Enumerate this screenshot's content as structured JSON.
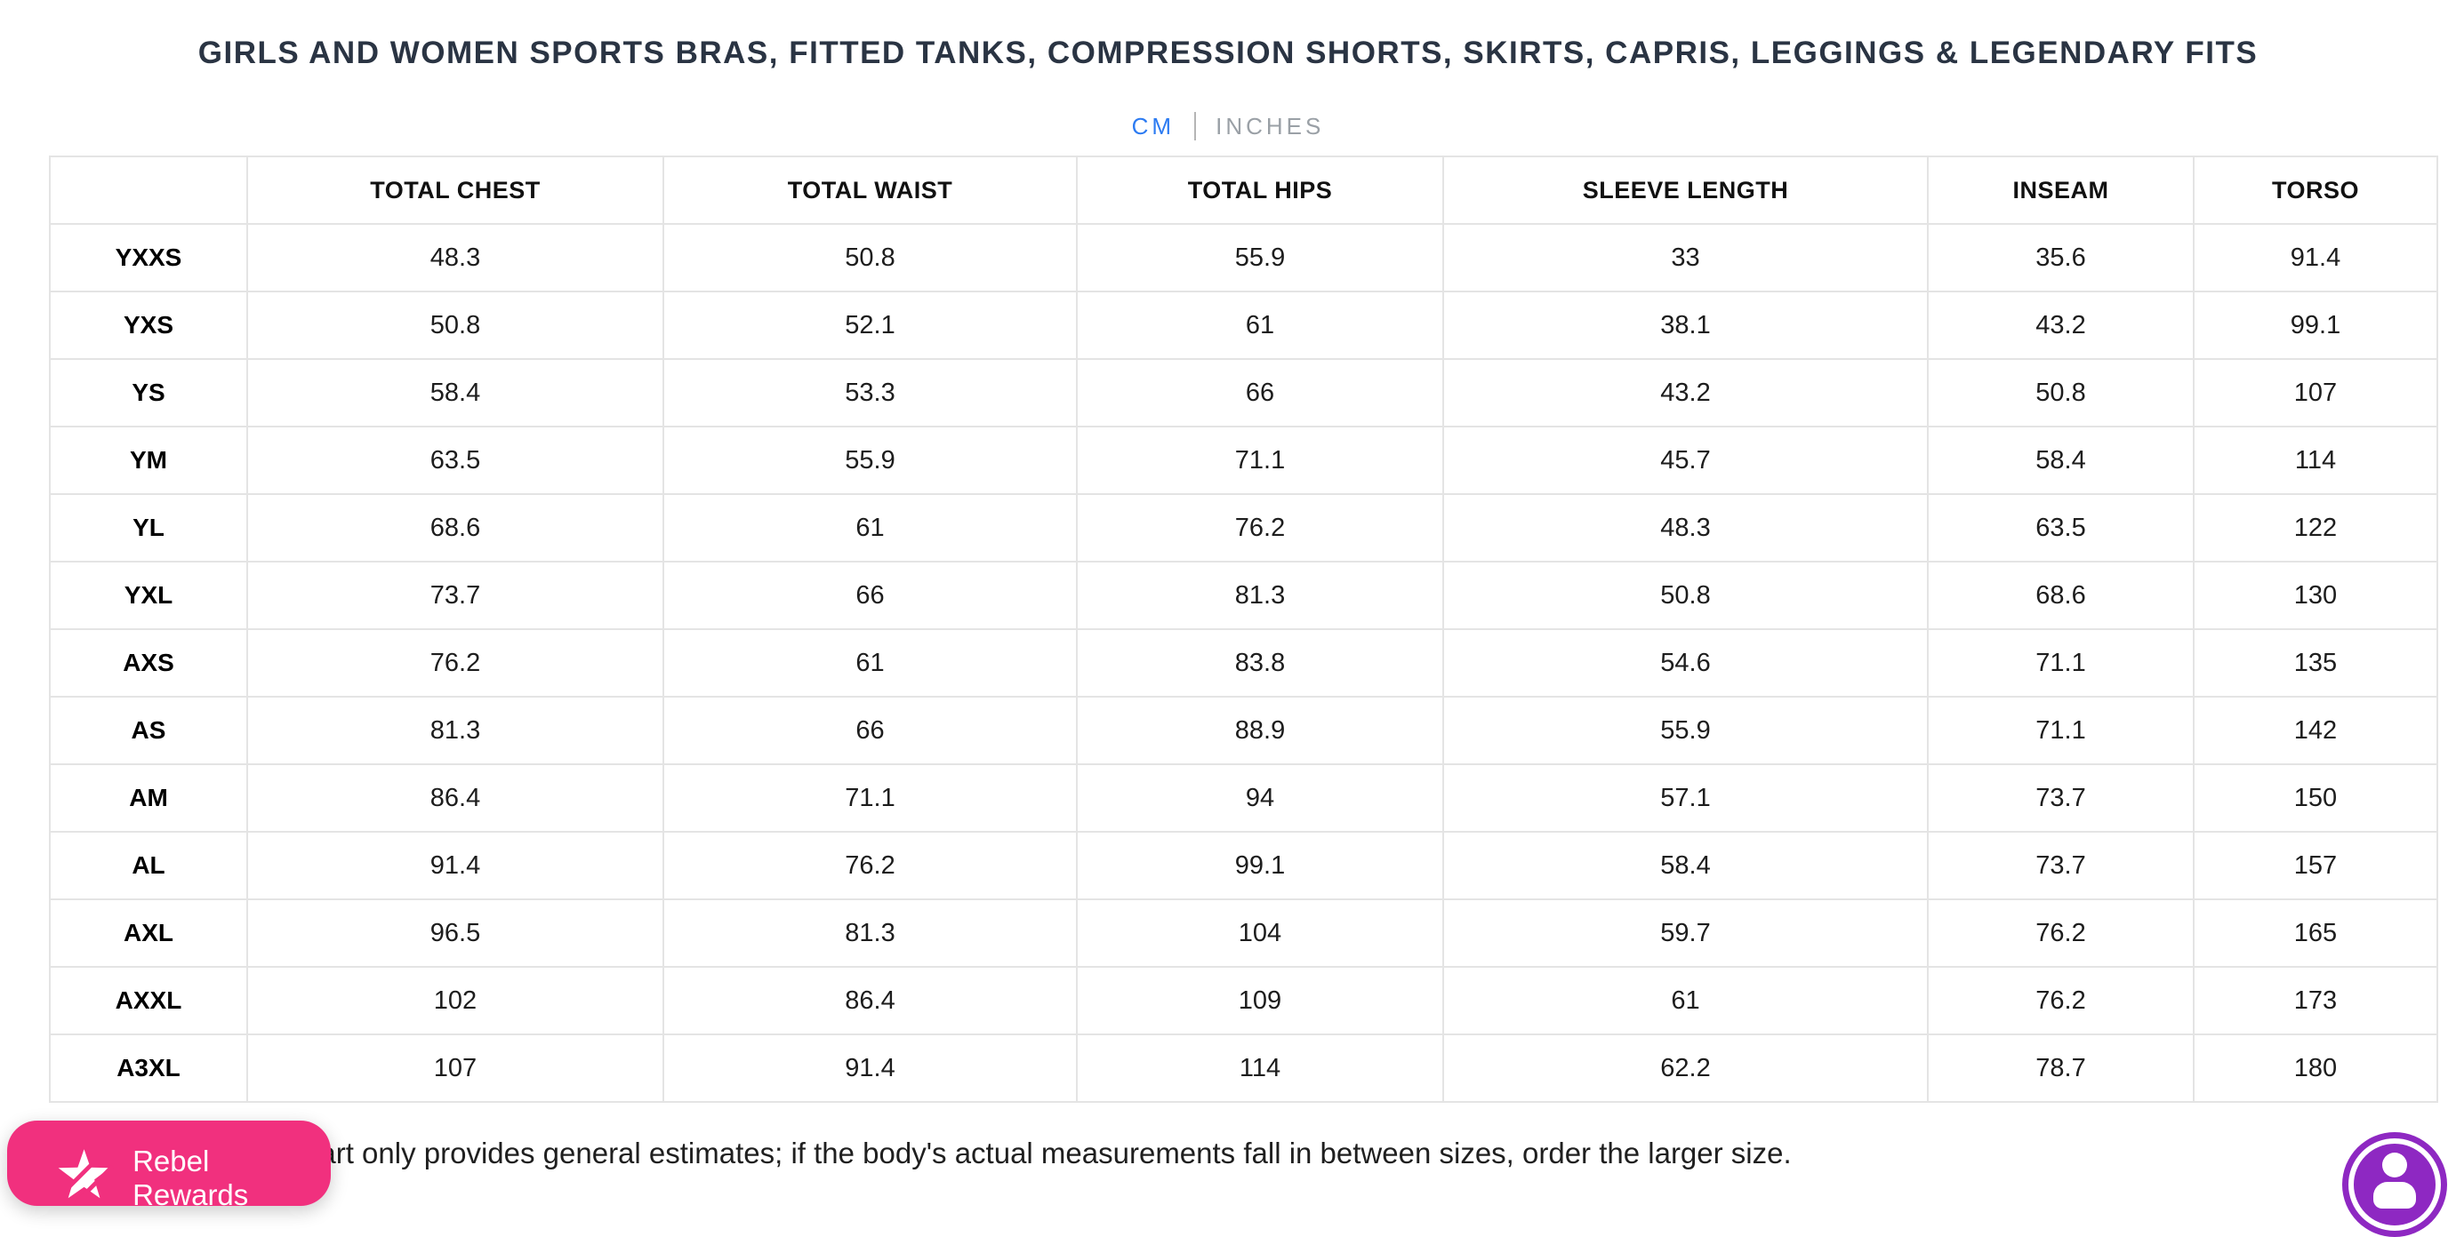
{
  "page": {
    "title": "GIRLS AND WOMEN SPORTS BRAS, FITTED TANKS, COMPRESSION SHORTS, SKIRTS, CAPRIS, LEGGINGS & LEGENDARY FITS",
    "note": "This chart only provides general estimates; if the body's actual measurements fall in between sizes, order the larger size."
  },
  "unit_toggle": {
    "cm_label": "CM",
    "inches_label": "INCHES",
    "selected": "CM",
    "active_color": "#2c7bf2",
    "inactive_color": "#9aa0a6"
  },
  "size_table": {
    "columns": [
      "",
      "TOTAL CHEST",
      "TOTAL WAIST",
      "TOTAL HIPS",
      "SLEEVE LENGTH",
      "INSEAM",
      "TORSO"
    ],
    "rows": [
      {
        "size": "YXXS",
        "values": [
          "48.3",
          "50.8",
          "55.9",
          "33",
          "35.6",
          "91.4"
        ]
      },
      {
        "size": "YXS",
        "values": [
          "50.8",
          "52.1",
          "61",
          "38.1",
          "43.2",
          "99.1"
        ]
      },
      {
        "size": "YS",
        "values": [
          "58.4",
          "53.3",
          "66",
          "43.2",
          "50.8",
          "107"
        ]
      },
      {
        "size": "YM",
        "values": [
          "63.5",
          "55.9",
          "71.1",
          "45.7",
          "58.4",
          "114"
        ]
      },
      {
        "size": "YL",
        "values": [
          "68.6",
          "61",
          "76.2",
          "48.3",
          "63.5",
          "122"
        ]
      },
      {
        "size": "YXL",
        "values": [
          "73.7",
          "66",
          "81.3",
          "50.8",
          "68.6",
          "130"
        ]
      },
      {
        "size": "AXS",
        "values": [
          "76.2",
          "61",
          "83.8",
          "54.6",
          "71.1",
          "135"
        ]
      },
      {
        "size": "AS",
        "values": [
          "81.3",
          "66",
          "88.9",
          "55.9",
          "71.1",
          "142"
        ]
      },
      {
        "size": "AM",
        "values": [
          "86.4",
          "71.1",
          "94",
          "57.1",
          "73.7",
          "150"
        ]
      },
      {
        "size": "AL",
        "values": [
          "91.4",
          "76.2",
          "99.1",
          "58.4",
          "73.7",
          "157"
        ]
      },
      {
        "size": "AXL",
        "values": [
          "96.5",
          "81.3",
          "104",
          "59.7",
          "76.2",
          "165"
        ]
      },
      {
        "size": "AXXL",
        "values": [
          "102",
          "86.4",
          "109",
          "61",
          "76.2",
          "173"
        ]
      },
      {
        "size": "A3XL",
        "values": [
          "107",
          "91.4",
          "114",
          "62.2",
          "78.7",
          "180"
        ]
      }
    ]
  },
  "rewards_button": {
    "label": "Rebel Rewards",
    "background": "#f1307e"
  },
  "chat_widget": {
    "background": "#8e28c2"
  }
}
